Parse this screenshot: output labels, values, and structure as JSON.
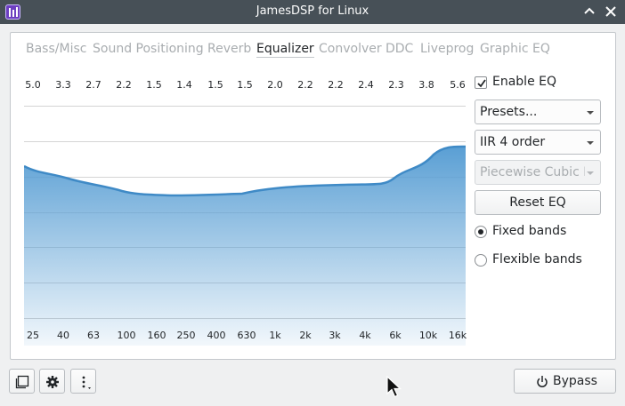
{
  "window": {
    "title": "JamesDSP for Linux",
    "icons": {
      "app": "equalizer-app-icon",
      "maximize": "chevron-up-icon",
      "close": "close-icon"
    }
  },
  "tabs": [
    {
      "label": "Bass/Misc",
      "active": false
    },
    {
      "label": "Sound Positioning",
      "active": false
    },
    {
      "label": "Reverb",
      "active": false
    },
    {
      "label": "Equalizer",
      "active": true
    },
    {
      "label": "Convolver",
      "active": false
    },
    {
      "label": "DDC",
      "active": false
    },
    {
      "label": "Liveprog",
      "active": false
    },
    {
      "label": "Graphic EQ",
      "active": false
    }
  ],
  "equalizer": {
    "band_gains": [
      "5.0",
      "3.3",
      "2.7",
      "2.2",
      "1.5",
      "1.4",
      "1.5",
      "1.5",
      "2.0",
      "2.2",
      "2.2",
      "2.4",
      "2.3",
      "3.8",
      "5.6"
    ],
    "band_freqs": [
      "25",
      "40",
      "63",
      "100",
      "160",
      "250",
      "400",
      "630",
      "1k",
      "2k",
      "3k",
      "4k",
      "6k",
      "10k",
      "16k"
    ],
    "curve_color": "#3f8ac6",
    "fill_color": "#5a9fd4"
  },
  "sidebar": {
    "enable_eq": {
      "label": "Enable EQ",
      "checked": true
    },
    "presets_combo": {
      "value": "Presets..."
    },
    "filter_order_combo": {
      "value": "IIR 4 order"
    },
    "interpolation_combo": {
      "value": "Piecewise Cubic H",
      "disabled": true
    },
    "reset_button": {
      "label": "Reset EQ"
    },
    "band_mode": {
      "fixed": {
        "label": "Fixed bands",
        "selected": true
      },
      "flexible": {
        "label": "Flexible bands",
        "selected": false
      }
    }
  },
  "bottom_bar": {
    "icons": [
      "window-icon",
      "gear-icon",
      "more-vertical-icon"
    ],
    "bypass_label": "Bypass",
    "bypass_icon": "power-icon"
  }
}
